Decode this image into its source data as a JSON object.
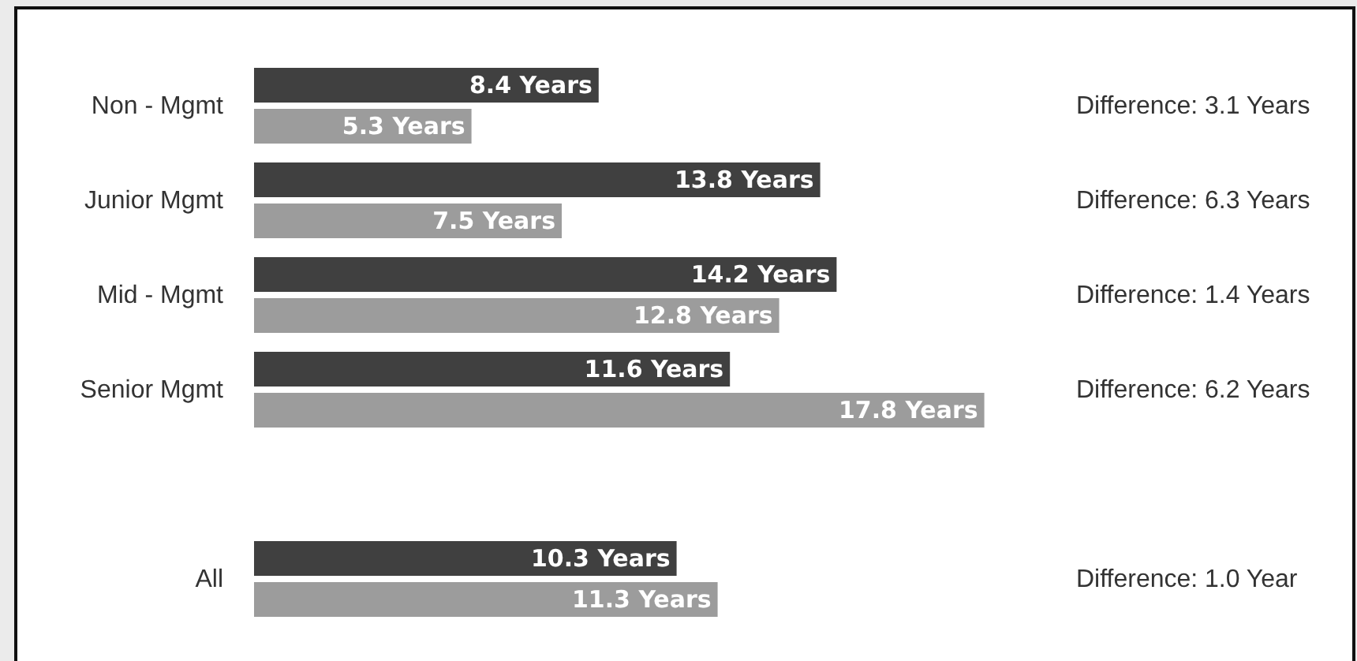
{
  "chart_data": {
    "type": "bar",
    "orientation": "horizontal",
    "tick_labels": "y",
    "categories": [
      "Non - Mgmt",
      "Junior Mgmt",
      "Mid - Mgmt",
      "Senior Mgmt",
      null,
      "All"
    ],
    "series": [
      {
        "color": "#404040",
        "values": [
          8.4,
          13.8,
          14.2,
          11.6,
          null,
          10.3
        ],
        "value_labels": [
          "8.4 Years",
          "13.8 Years",
          "14.2 Years",
          "11.6 Years",
          null,
          "10.3 Years"
        ]
      },
      {
        "color": "#9c9c9c",
        "values": [
          5.3,
          7.5,
          12.8,
          17.8,
          null,
          11.3
        ],
        "value_labels": [
          "5.3 Years",
          "7.5 Years",
          "12.8 Years",
          "17.8 Years",
          null,
          "11.3 Years"
        ]
      }
    ],
    "annotations": [
      "Difference: 3.1 Years",
      "Difference: 6.3 Years",
      "Difference: 1.4 Years",
      "Difference: 6.2 Years",
      "Difference: 1.0 Year"
    ]
  }
}
